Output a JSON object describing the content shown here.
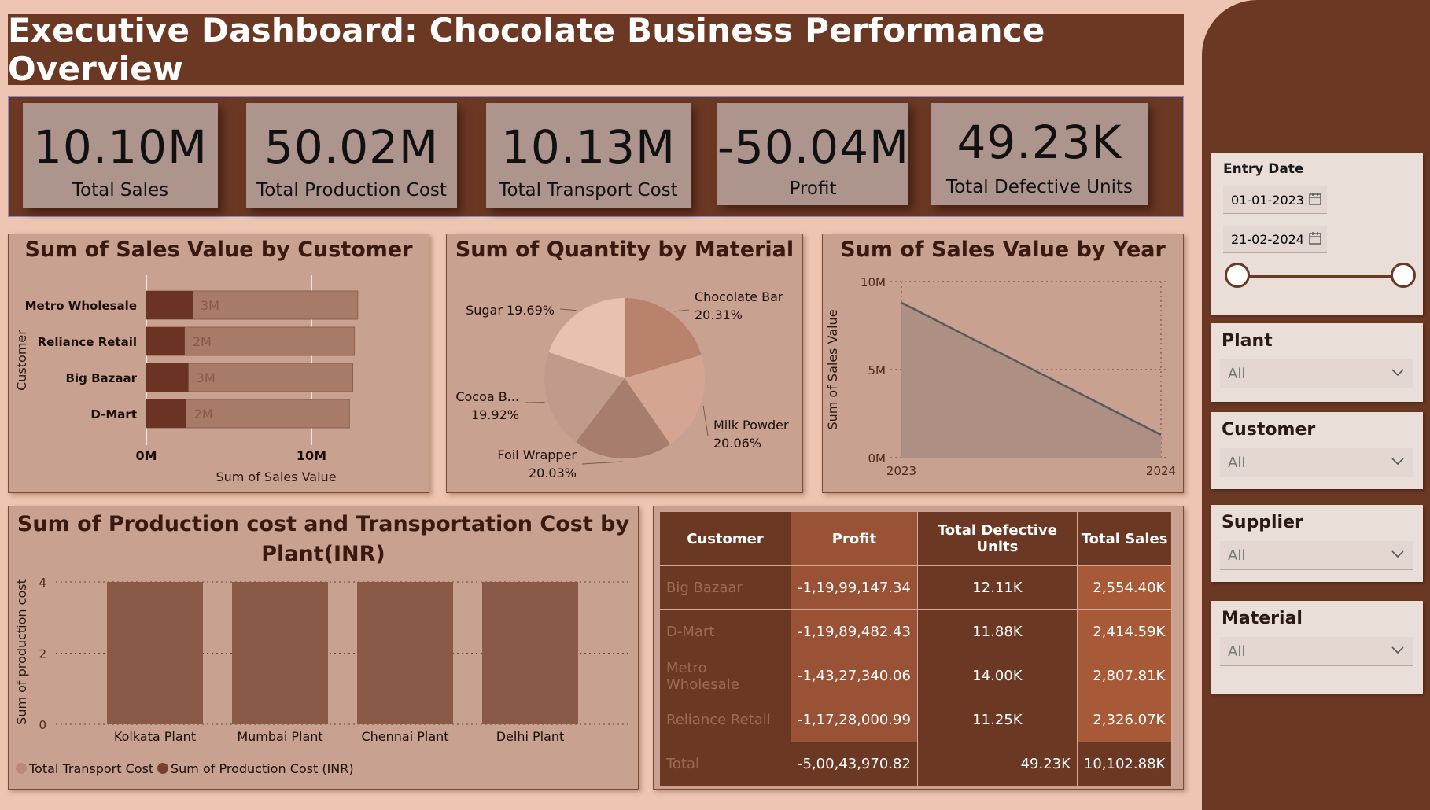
{
  "title": "Executive Dashboard: Chocolate Business Performance Overview",
  "kpis": [
    {
      "value": "10.10M",
      "label": "Total Sales"
    },
    {
      "value": "50.02M",
      "label": "Total Production Cost"
    },
    {
      "value": "10.13M",
      "label": "Total Transport Cost"
    },
    {
      "value": "-50.04M",
      "label": "Profit"
    },
    {
      "value": "49.23K",
      "label": "Total Defective Units"
    }
  ],
  "bar_chart": {
    "title": "Sum of Sales Value by Customer",
    "xlabel": "Sum of Sales Value",
    "ylabel": "Customer",
    "x_ticks": [
      "0M",
      "10M"
    ],
    "xlim": [
      0,
      10000000
    ],
    "categories": [
      "Metro Wholesale",
      "Reliance Retail",
      "Big Bazaar",
      "D-Mart"
    ],
    "values": [
      2807810,
      2326070,
      2554400,
      2414590
    ],
    "data_labels": [
      "3M",
      "2M",
      "3M",
      "2M"
    ],
    "background_values": [
      12800000,
      12600000,
      12500000,
      12300000
    ]
  },
  "pie_chart": {
    "title": "Sum of Quantity by Material",
    "slices": [
      {
        "label": "Chocolate Bar",
        "pct": "20.31%",
        "value": 20.31,
        "color": "#b8826d"
      },
      {
        "label": "Milk Powder",
        "pct": "20.06%",
        "value": 20.06,
        "color": "#d4a590"
      },
      {
        "label": "Foil Wrapper",
        "pct": "20.03%",
        "value": 20.03,
        "color": "#a77e6e"
      },
      {
        "label": "Cocoa B...",
        "pct": "19.92%",
        "value": 19.92,
        "color": "#c09a8a"
      },
      {
        "label": "Sugar",
        "pct": "19.69%",
        "value": 19.69,
        "color": "#e8c2b0"
      }
    ]
  },
  "line_chart": {
    "title": "Sum of Sales Value by Year",
    "ylabel": "Sum of Sales Value",
    "y_ticks": [
      "10M",
      "5M",
      "0M"
    ],
    "x_ticks": [
      "2023",
      "2024"
    ],
    "ylim": [
      0,
      10000000
    ],
    "x": [
      2023,
      2024
    ],
    "values": [
      8800000,
      1300000
    ]
  },
  "cost_chart": {
    "title_line1": "Sum of Production cost and Transportation Cost by",
    "title_line2": "Plant(INR)",
    "ylabel": "Sum of production cost",
    "y_ticks": [
      "4",
      "2",
      "0"
    ],
    "ylim": [
      0,
      4
    ],
    "categories": [
      "Kolkata Plant",
      "Mumbai Plant",
      "Chennai Plant",
      "Delhi Plant"
    ],
    "values": [
      4,
      4,
      4,
      4
    ],
    "legend": [
      {
        "label": "Total Transport Cost",
        "color": "#b98a77"
      },
      {
        "label": "Sum of Production Cost (INR)",
        "color": "#7a4030"
      }
    ]
  },
  "table": {
    "headers": [
      "Customer",
      "Profit",
      "Total Defective Units",
      "Total Sales"
    ],
    "rows": [
      [
        "Big Bazaar",
        "-1,19,99,147.34",
        "12.11K",
        "2,554.40K"
      ],
      [
        "D-Mart",
        "-1,19,89,482.43",
        "11.88K",
        "2,414.59K"
      ],
      [
        "Metro Wholesale",
        "-1,43,27,340.06",
        "14.00K",
        "2,807.81K"
      ],
      [
        "Reliance Retail",
        "-1,17,28,000.99",
        "11.25K",
        "2,326.07K"
      ]
    ],
    "total": [
      "Total",
      "-5,00,43,970.82",
      "49.23K",
      "10,102.88K"
    ]
  },
  "filters": {
    "entry_date": {
      "title": "Entry Date",
      "start": "01-01-2023",
      "end": "21-02-2024"
    },
    "plant": {
      "title": "Plant",
      "value": "All"
    },
    "customer": {
      "title": "Customer",
      "value": "All"
    },
    "supplier": {
      "title": "Supplier",
      "value": "All"
    },
    "material": {
      "title": "Material",
      "value": "All"
    }
  },
  "colors": {
    "background": "#eec5b2",
    "dark_brown": "#6b3824",
    "card": "#c9a190",
    "bar_dark": "#6b3323",
    "bar_light": "#a87a68",
    "table_profit_col": "#9a5236",
    "table_sales_col": "#a85a38"
  }
}
